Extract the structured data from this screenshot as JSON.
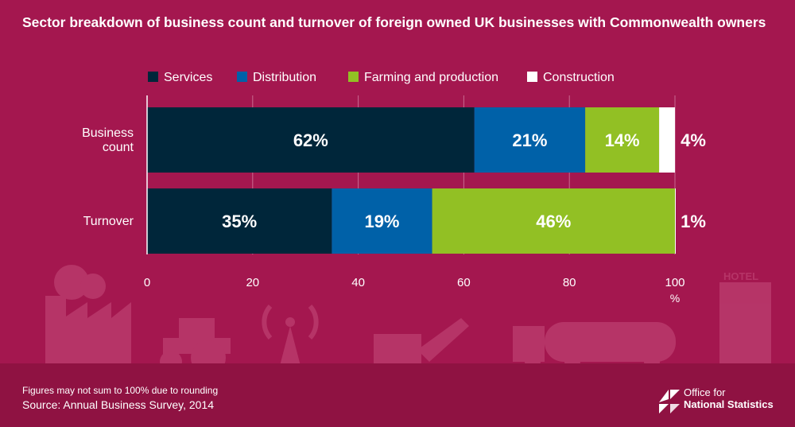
{
  "title": "Sector breakdown of business count and turnover of foreign owned UK businesses with Commonwealth owners",
  "footnote": "Figures may not sum to 100% due to rounding",
  "source": "Source: Annual Business Survey, 2014",
  "logo": {
    "line1": "Office for",
    "line2": "National Statistics"
  },
  "colors": {
    "background": "#a4174f",
    "Services": "#00263a",
    "Distribution": "#0061a8",
    "Farming and production": "#92c024",
    "Construction": "#ffffff"
  },
  "chart_data": {
    "type": "bar",
    "orientation": "horizontal",
    "stacked": true,
    "categories": [
      "Business\ncount",
      "Turnover"
    ],
    "series": [
      {
        "name": "Services",
        "values": [
          62,
          35
        ],
        "labels": [
          "62%",
          "35%"
        ]
      },
      {
        "name": "Distribution",
        "values": [
          21,
          19
        ],
        "labels": [
          "21%",
          "19%"
        ]
      },
      {
        "name": "Farming and production",
        "values": [
          14,
          46
        ],
        "labels": [
          "14%",
          "46%"
        ]
      },
      {
        "name": "Construction",
        "values": [
          4,
          1
        ],
        "labels": [
          "4%",
          "1%"
        ]
      }
    ],
    "xlim": [
      0,
      100
    ],
    "xticks": [
      0,
      20,
      40,
      60,
      80,
      100
    ],
    "xunit": "%",
    "grid": true,
    "legend": "top"
  }
}
